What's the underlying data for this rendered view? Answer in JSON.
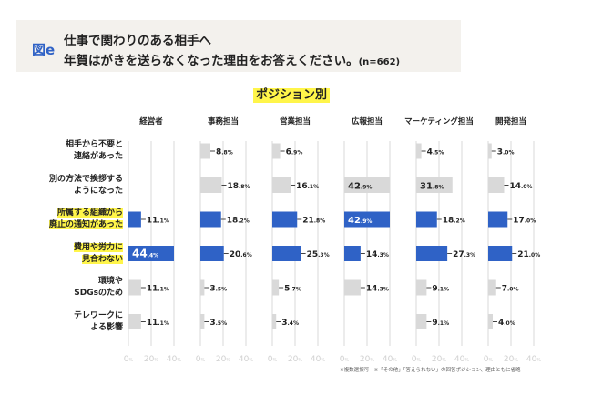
{
  "header": {
    "figure_label": "図e",
    "title_line1": "仕事で関わりのある相手へ",
    "title_line2": "年賀はがきを送らなくなった理由をお答えください。",
    "sample_size": "(n=662)"
  },
  "subtitle": "ポジション別",
  "footnote": "※複数選択可　※「その他」「答えられない」の回答ポジション、理由ともに省略",
  "colors": {
    "highlight_bar": "#2f62c6",
    "normal_bar": "#d9d9d9",
    "highlight_label_bg": "#fff54a",
    "header_bg": "#f3f1ed",
    "grid": "#d9d9d9",
    "axis_tick_text": "#d0d0d0"
  },
  "chart_data": {
    "type": "bar",
    "orientation": "horizontal",
    "title": "仕事で関わりのある相手へ年賀はがきを送らなくなった理由をお答えください。(n=662)",
    "subtitle": "ポジション別",
    "xlabel": "",
    "ylabel": "",
    "xlim": [
      0,
      40
    ],
    "x_ticks": [
      "0%",
      "20%",
      "40%"
    ],
    "grid": true,
    "unit": "%",
    "categories": [
      {
        "label_lines": [
          "相手から不要と",
          "連絡があった"
        ],
        "highlight": false
      },
      {
        "label_lines": [
          "別の方法で挨拶する",
          "ようになった"
        ],
        "highlight": false
      },
      {
        "label_lines": [
          "所属する組織から",
          "廃止の通知があった"
        ],
        "highlight": true
      },
      {
        "label_lines": [
          "費用や労力に",
          "見合わない"
        ],
        "highlight": true
      },
      {
        "label_lines": [
          "環境や",
          "SDGsのため"
        ],
        "highlight": false
      },
      {
        "label_lines": [
          "テレワークに",
          "よる影響"
        ],
        "highlight": false
      }
    ],
    "series": [
      {
        "name": "経営者",
        "values": [
          null,
          null,
          11.1,
          44.4,
          11.1,
          11.1
        ]
      },
      {
        "name": "事務担当",
        "values": [
          8.8,
          18.8,
          18.2,
          20.6,
          3.5,
          3.5
        ]
      },
      {
        "name": "営業担当",
        "values": [
          6.9,
          16.1,
          21.8,
          25.3,
          5.7,
          3.4
        ]
      },
      {
        "name": "広報担当",
        "values": [
          null,
          42.9,
          42.9,
          14.3,
          14.3,
          null
        ]
      },
      {
        "name": "マーケティング担当",
        "values": [
          4.5,
          31.8,
          18.2,
          27.3,
          9.1,
          9.1
        ]
      },
      {
        "name": "開発担当",
        "values": [
          3.0,
          14.0,
          17.0,
          21.0,
          7.0,
          4.0
        ]
      }
    ]
  }
}
